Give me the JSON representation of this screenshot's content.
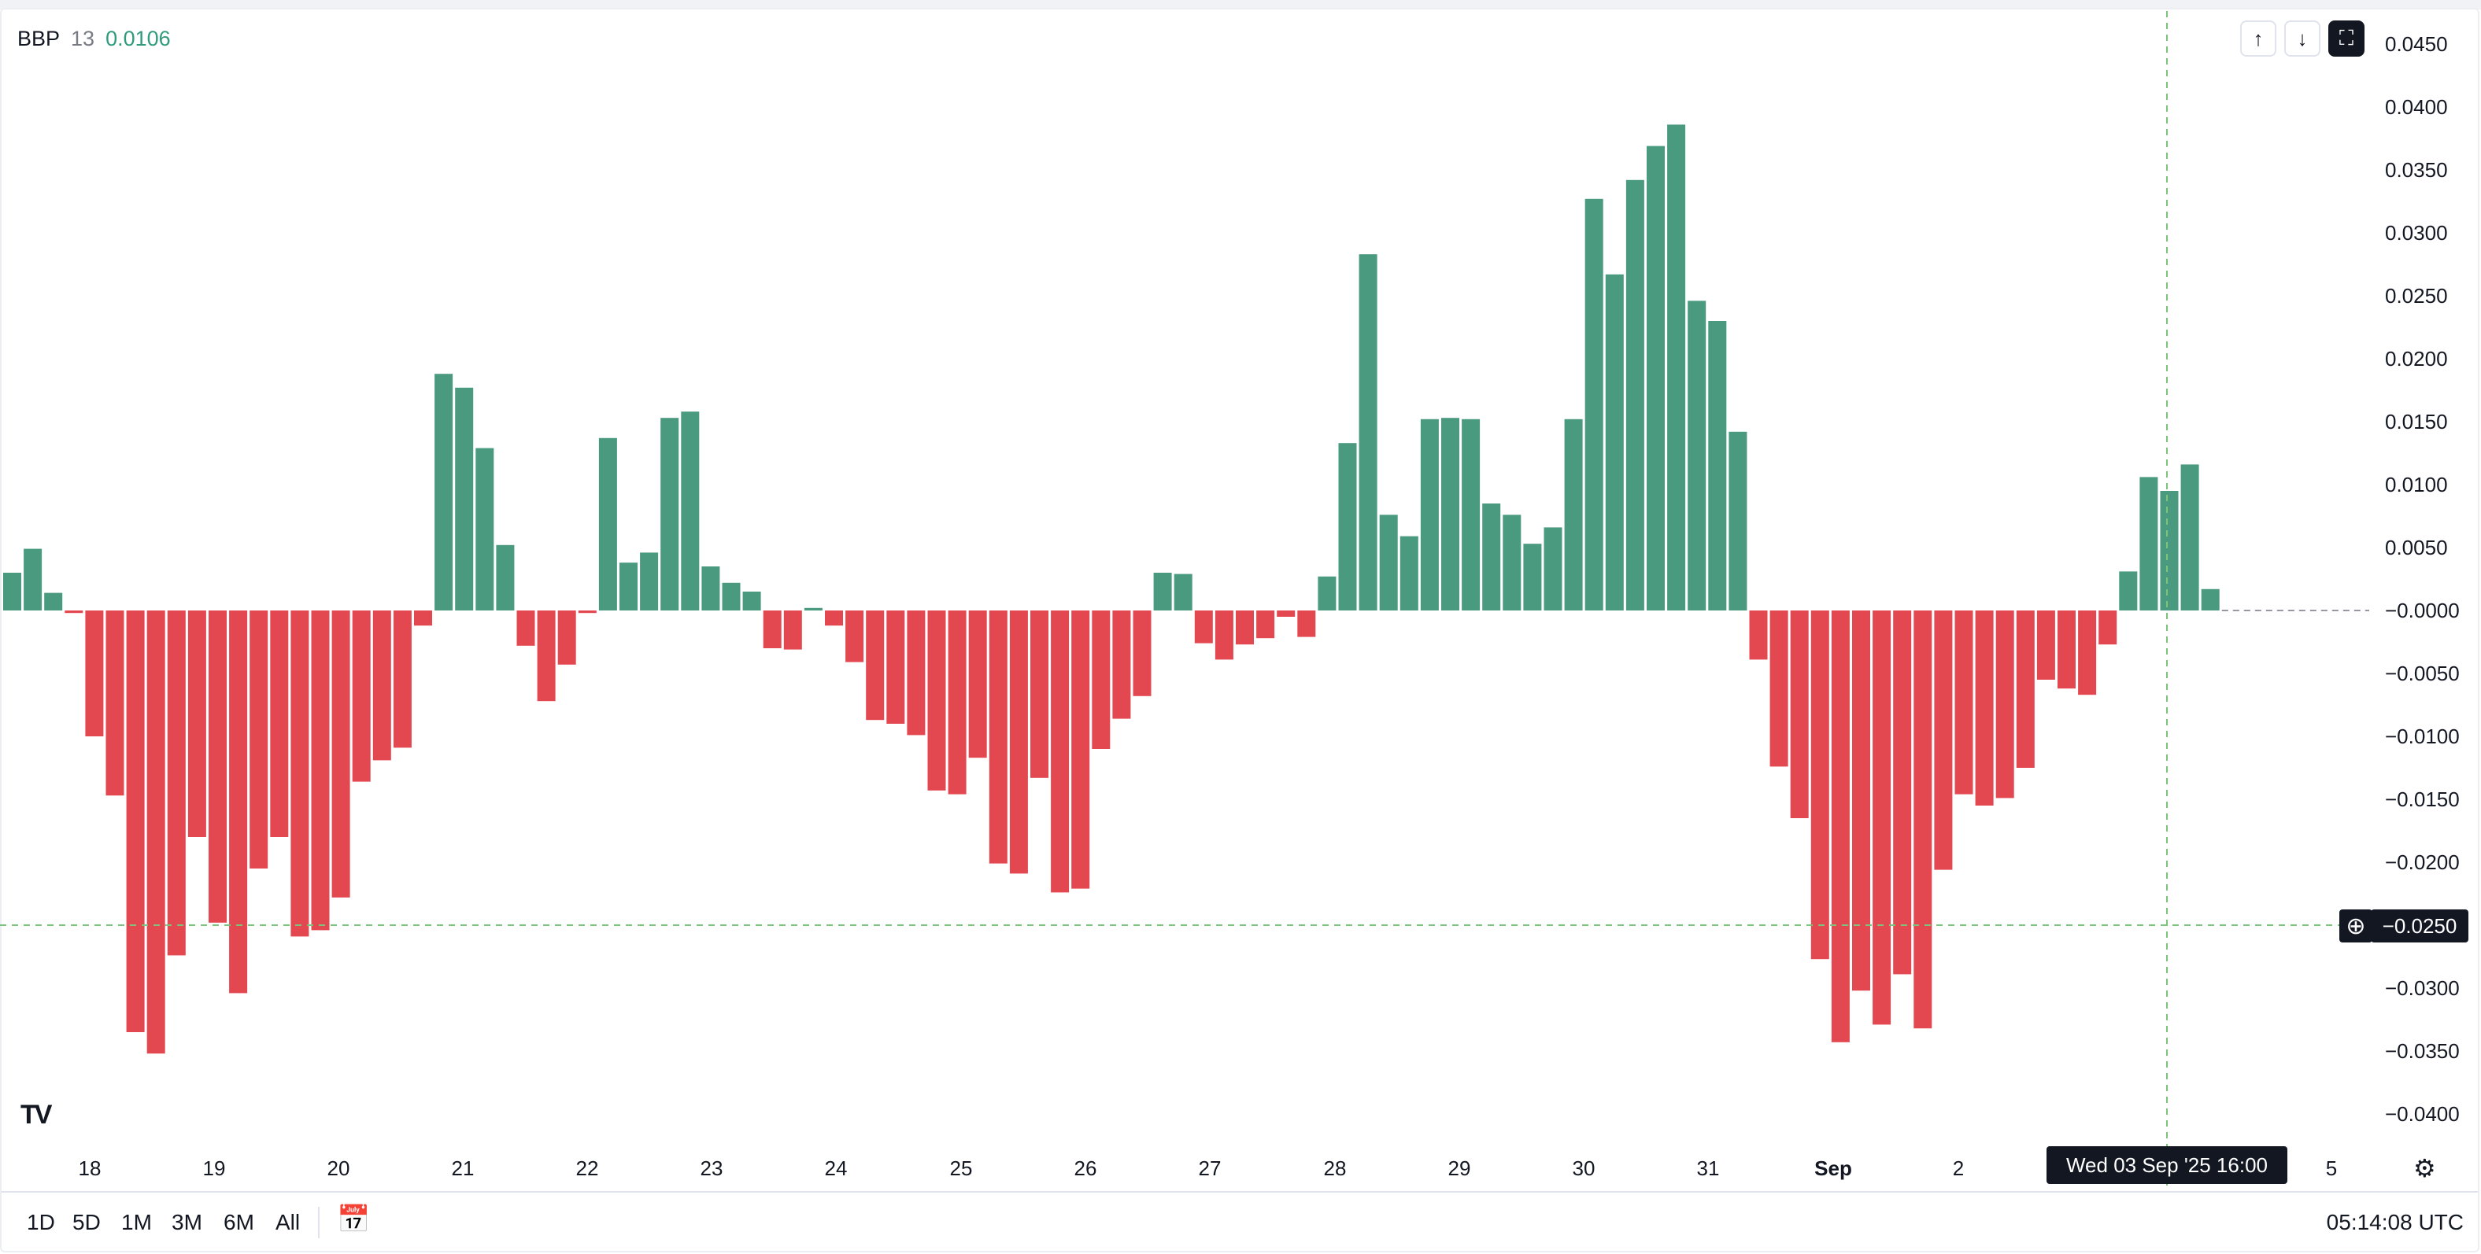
{
  "indicator": {
    "name": "BBP",
    "length": "13",
    "value": "0.0106"
  },
  "controls": {
    "up_icon": "arrow-up-icon",
    "down_icon": "arrow-down-icon",
    "fullscreen_icon": "fullscreen-icon",
    "up": "↑",
    "down": "↓",
    "fs": "⛶"
  },
  "crosshair": {
    "y_label": "−0.0250",
    "x_label": "Wed 03 Sep '25   16:00",
    "plus": "⊕"
  },
  "time_ranges": [
    "1D",
    "5D",
    "1M",
    "3M",
    "6M",
    "All"
  ],
  "clock": "05:14:08 UTC",
  "logo": "TV",
  "icons": {
    "calendar": "calendar-goto-icon",
    "calendar_glyph": "📅",
    "settings": "settings-icon",
    "settings_glyph": "⚙"
  },
  "colors": {
    "positive": "#4a9a80",
    "negative": "#e3474f",
    "crosshair": "#7cc37c",
    "zero_line": "#9598a1"
  },
  "chart_data": {
    "type": "bar",
    "title": "",
    "x_tick_labels": [
      "18",
      "19",
      "20",
      "21",
      "22",
      "23",
      "24",
      "25",
      "26",
      "27",
      "28",
      "29",
      "30",
      "31",
      "Sep",
      "2",
      "5"
    ],
    "y_tick_labels": [
      "0.0450",
      "0.0400",
      "0.0350",
      "0.0300",
      "0.0250",
      "0.0200",
      "0.0150",
      "0.0100",
      "0.0050",
      "−0.0000",
      "−0.0050",
      "−0.0100",
      "−0.0150",
      "−0.0200",
      "−0.0300",
      "−0.0350",
      "−0.0400"
    ],
    "ylim": [
      -0.042,
      0.046
    ],
    "grid": false,
    "values": [
      0.003,
      0.0049,
      0.0014,
      -0.0002,
      -0.01,
      -0.0147,
      -0.0335,
      -0.0352,
      -0.0274,
      -0.018,
      -0.0248,
      -0.0304,
      -0.0205,
      -0.018,
      -0.0259,
      -0.0254,
      -0.0228,
      -0.0136,
      -0.0119,
      -0.0109,
      -0.0012,
      0.0188,
      0.0177,
      0.0129,
      0.0052,
      -0.0028,
      -0.0072,
      -0.0043,
      -0.0002,
      0.0137,
      0.0038,
      0.0046,
      0.0153,
      0.0158,
      0.0035,
      0.0022,
      0.0015,
      -0.003,
      -0.0031,
      0.0002,
      -0.0012,
      -0.0041,
      -0.0087,
      -0.009,
      -0.0099,
      -0.0143,
      -0.0146,
      -0.0117,
      -0.0201,
      -0.0209,
      -0.0133,
      -0.0224,
      -0.0221,
      -0.011,
      -0.0086,
      -0.0068,
      0.003,
      0.0029,
      -0.0026,
      -0.0039,
      -0.0027,
      -0.0022,
      -0.0005,
      -0.0021,
      0.0027,
      0.0133,
      0.0283,
      0.0076,
      0.0059,
      0.0152,
      0.0153,
      0.0152,
      0.0085,
      0.0076,
      0.0053,
      0.0066,
      0.0152,
      0.0327,
      0.0267,
      0.0342,
      0.0369,
      0.0386,
      0.0246,
      0.023,
      0.0142,
      -0.0039,
      -0.0124,
      -0.0165,
      -0.0277,
      -0.0343,
      -0.0302,
      -0.0329,
      -0.0289,
      -0.0332,
      -0.0206,
      -0.0146,
      -0.0155,
      -0.0149,
      -0.0125,
      -0.0055,
      -0.0062,
      -0.0067,
      -0.0027,
      0.0031,
      0.0106,
      0.0095,
      0.0116,
      0.0017
    ]
  }
}
